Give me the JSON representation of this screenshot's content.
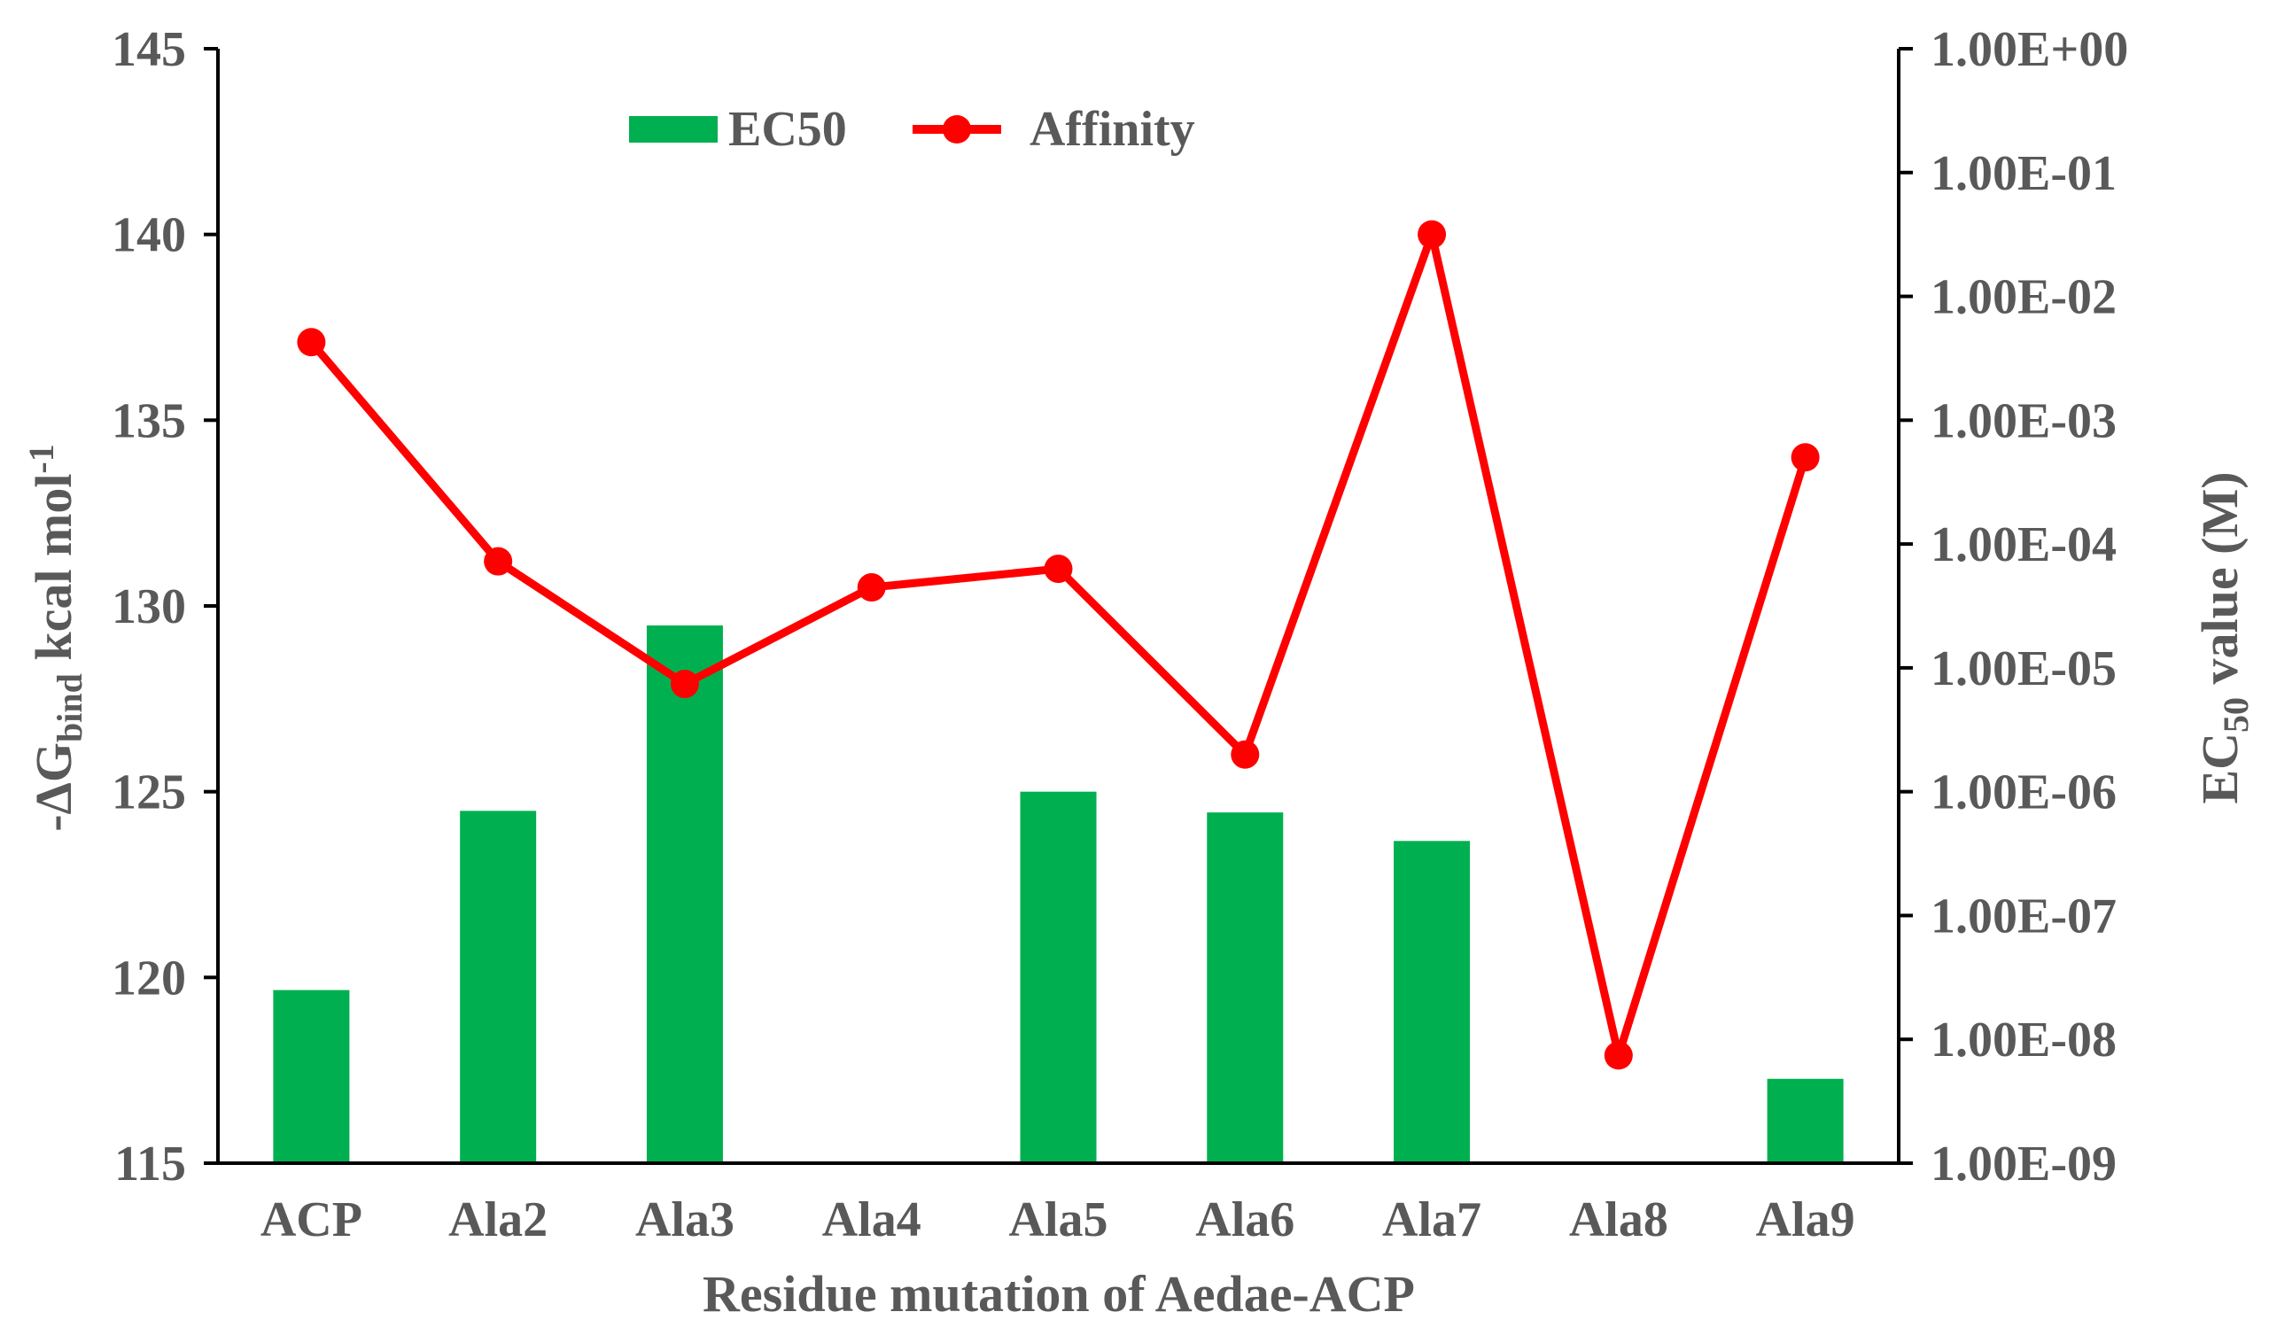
{
  "chart_data": {
    "type": "bar+line",
    "categories": [
      "ACP",
      "Ala2",
      "Ala3",
      "Ala4",
      "Ala5",
      "Ala6",
      "Ala7",
      "Ala8",
      "Ala9"
    ],
    "xlabel": "Residue mutation of Aedae-ACP",
    "ylabel_left": "-ΔGbind kcal mol-1",
    "ylabel_right": "EC50 value (M)",
    "left_axis": {
      "min": 115,
      "max": 145,
      "ticks": [
        115,
        120,
        125,
        130,
        135,
        140,
        145
      ]
    },
    "right_axis": {
      "scale": "log",
      "min": 1e-09,
      "max": 1,
      "ticks": [
        1e-09,
        1e-08,
        1e-07,
        1e-06,
        1e-05,
        0.0001,
        0.001,
        0.01,
        0.1,
        1
      ],
      "tick_labels": [
        "1.00E-09",
        "1.00E-08",
        "1.00E-07",
        "1.00E-06",
        "1.00E-05",
        "1.00E-04",
        "1.00E-03",
        "1.00E-02",
        "1.00E-01",
        "1.00E+00"
      ]
    },
    "series": [
      {
        "name": "EC50",
        "type": "bar",
        "axis": "right",
        "color": "#00B050",
        "values": [
          2.5e-08,
          7e-07,
          2.2e-05,
          null,
          1e-06,
          6.8e-07,
          4e-07,
          null,
          4.8e-09
        ]
      },
      {
        "name": "Affinity",
        "type": "line",
        "axis": "left",
        "color": "#FF0000",
        "values": [
          137.1,
          131.2,
          127.9,
          130.5,
          131.0,
          126.0,
          140.0,
          117.9,
          134.0
        ]
      }
    ],
    "legend_position": "top-left",
    "grid": false
  }
}
